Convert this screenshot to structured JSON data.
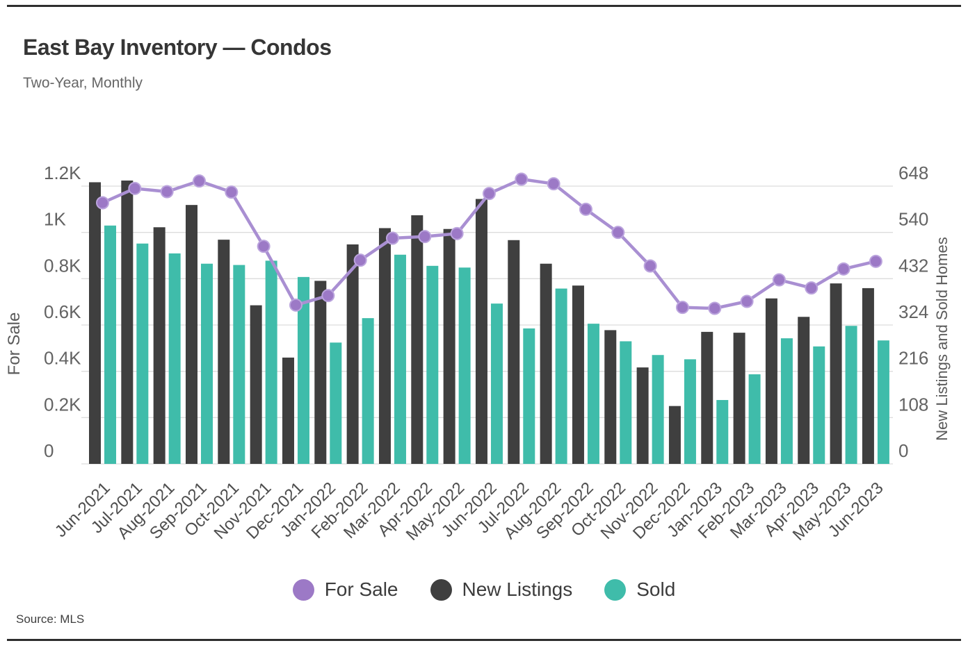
{
  "page": {
    "title": "East Bay Inventory — Condos",
    "subtitle": "Two-Year, Monthly",
    "source": "Source: MLS"
  },
  "legend": [
    {
      "label": "For Sale",
      "color": "#9c79c6"
    },
    {
      "label": "New Listings",
      "color": "#3f3f3f"
    },
    {
      "label": "Sold",
      "color": "#3fbcaa"
    }
  ],
  "chart_data": {
    "type": "combo bar+line",
    "categories": [
      "Jun-2021",
      "Jul-2021",
      "Aug-2021",
      "Sep-2021",
      "Oct-2021",
      "Nov-2021",
      "Dec-2021",
      "Jan-2022",
      "Feb-2022",
      "Mar-2022",
      "Apr-2022",
      "May-2022",
      "Jun-2022",
      "Jul-2022",
      "Aug-2022",
      "Sep-2022",
      "Oct-2022",
      "Nov-2022",
      "Dec-2022",
      "Jan-2023",
      "Feb-2023",
      "Mar-2023",
      "Apr-2023",
      "May-2023",
      "Jun-2023"
    ],
    "series": [
      {
        "name": "For Sale",
        "type": "line",
        "axis": "left",
        "color": "#9c79c6",
        "line_color": "#a98fd2",
        "values": [
          1128,
          1190,
          1176,
          1222,
          1174,
          940,
          686,
          727,
          880,
          975,
          982,
          995,
          1168,
          1230,
          1210,
          1100,
          1000,
          855,
          676,
          672,
          702,
          795,
          760,
          842,
          875
        ]
      },
      {
        "name": "New Listings",
        "type": "bar",
        "axis": "right",
        "color": "#3f3f3f",
        "values": [
          657,
          661,
          552,
          604,
          523,
          370,
          248,
          427,
          512,
          550,
          580,
          548,
          618,
          522,
          467,
          416,
          312,
          225,
          135,
          308,
          306,
          386,
          343,
          421,
          410
        ]
      },
      {
        "name": "Sold",
        "type": "bar",
        "axis": "right",
        "color": "#3fbcaa",
        "values": [
          556,
          514,
          491,
          467,
          464,
          474,
          436,
          283,
          340,
          488,
          462,
          458,
          374,
          316,
          409,
          327,
          286,
          254,
          244,
          149,
          209,
          293,
          274,
          322,
          288
        ]
      }
    ],
    "left_axis": {
      "title": "For Sale",
      "ticks": [
        "0",
        "0.2K",
        "0.4K",
        "0.6K",
        "0.8K",
        "1K",
        "1.2K"
      ],
      "min": 0,
      "max": 1200
    },
    "right_axis": {
      "title": "New Listings and Sold Homes",
      "ticks": [
        "0",
        "108",
        "216",
        "324",
        "432",
        "540",
        "648"
      ],
      "min": 0,
      "max": 648
    },
    "grid": true,
    "legend_position": "bottom"
  }
}
